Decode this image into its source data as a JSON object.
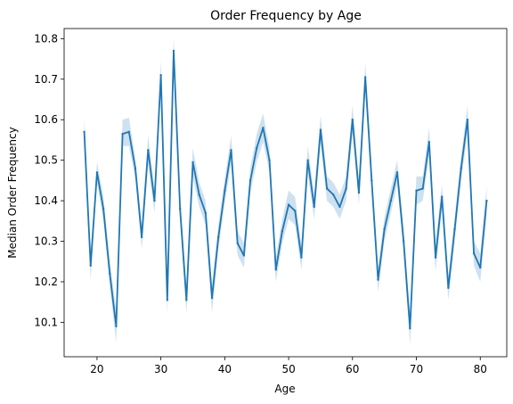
{
  "chart_data": {
    "type": "line",
    "title": "Order Frequency by Age",
    "xlabel": "Age",
    "ylabel": "Median Order Frequency",
    "xlim": [
      14.85,
      84.15
    ],
    "ylim": [
      10.015,
      10.825
    ],
    "xticks": [
      20,
      30,
      40,
      50,
      60,
      70,
      80
    ],
    "yticks": [
      10.1,
      10.2,
      10.3,
      10.4,
      10.5,
      10.6,
      10.7,
      10.8
    ],
    "grid": false,
    "line_color": "#1f77b4",
    "band_color": "#1f77b4",
    "series": [
      {
        "x": [
          18,
          19,
          20,
          21,
          22,
          23,
          24,
          25,
          26,
          27,
          28,
          29,
          30,
          31,
          32,
          33,
          34,
          35,
          36,
          37,
          38,
          39,
          40,
          41,
          42,
          43,
          44,
          45,
          46,
          47,
          48,
          49,
          50,
          51,
          52,
          53,
          54,
          55,
          56,
          57,
          58,
          59,
          60,
          61,
          62,
          63,
          64,
          65,
          66,
          67,
          68,
          69,
          70,
          71,
          72,
          73,
          74,
          75,
          76,
          77,
          78,
          79,
          80,
          81
        ],
        "values": [
          10.57,
          10.24,
          10.47,
          10.38,
          10.22,
          10.09,
          10.565,
          10.57,
          10.48,
          10.31,
          10.525,
          10.4,
          10.71,
          10.155,
          10.77,
          10.38,
          10.155,
          10.495,
          10.415,
          10.37,
          10.16,
          10.31,
          10.425,
          10.525,
          10.295,
          10.265,
          10.45,
          10.53,
          10.58,
          10.5,
          10.23,
          10.325,
          10.39,
          10.375,
          10.26,
          10.5,
          10.385,
          10.575,
          10.43,
          10.415,
          10.385,
          10.43,
          10.6,
          10.42,
          10.705,
          10.45,
          10.205,
          10.33,
          10.4,
          10.47,
          10.3,
          10.085,
          10.425,
          10.43,
          10.545,
          10.26,
          10.41,
          10.185,
          10.33,
          10.48,
          10.6,
          10.27,
          10.235,
          10.4
        ],
        "lower": [
          10.535,
          10.205,
          10.445,
          10.35,
          10.19,
          10.05,
          10.535,
          10.535,
          10.455,
          10.28,
          10.49,
          10.37,
          10.675,
          10.12,
          10.735,
          10.35,
          10.12,
          10.46,
          10.385,
          10.34,
          10.125,
          10.28,
          10.395,
          10.49,
          10.265,
          10.235,
          10.42,
          10.495,
          10.545,
          10.47,
          10.2,
          10.295,
          10.355,
          10.34,
          10.23,
          10.465,
          10.355,
          10.54,
          10.4,
          10.385,
          10.355,
          10.4,
          10.565,
          10.39,
          10.67,
          10.42,
          10.175,
          10.3,
          10.37,
          10.44,
          10.27,
          10.045,
          10.39,
          10.4,
          10.51,
          10.225,
          10.38,
          10.155,
          10.3,
          10.45,
          10.565,
          10.24,
          10.2,
          10.365
        ],
        "upper": [
          10.605,
          10.275,
          10.495,
          10.41,
          10.25,
          10.13,
          10.6,
          10.605,
          10.505,
          10.34,
          10.56,
          10.43,
          10.745,
          10.19,
          10.805,
          10.41,
          10.19,
          10.53,
          10.445,
          10.4,
          10.195,
          10.34,
          10.455,
          10.56,
          10.325,
          10.295,
          10.48,
          10.565,
          10.615,
          10.53,
          10.26,
          10.355,
          10.425,
          10.41,
          10.29,
          10.535,
          10.415,
          10.61,
          10.46,
          10.445,
          10.415,
          10.46,
          10.635,
          10.45,
          10.74,
          10.48,
          10.235,
          10.36,
          10.43,
          10.5,
          10.33,
          10.125,
          10.46,
          10.46,
          10.58,
          10.295,
          10.44,
          10.215,
          10.36,
          10.51,
          10.635,
          10.3,
          10.27,
          10.435
        ]
      }
    ]
  }
}
